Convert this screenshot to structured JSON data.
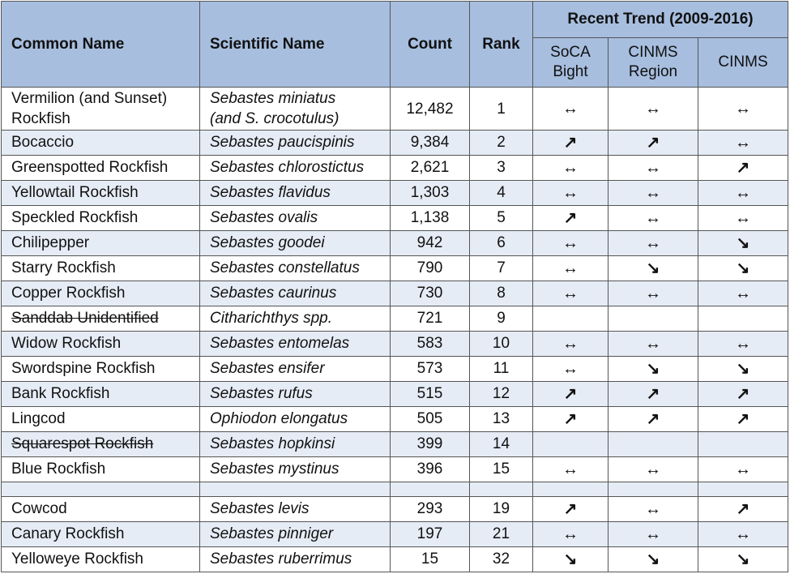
{
  "headers": {
    "common": "Common Name",
    "scientific": "Scientific Name",
    "count": "Count",
    "rank": "Rank",
    "trend_group": "Recent Trend (2009-2016)",
    "trend_cols": [
      "SoCA Bight",
      "CINMS Region",
      "CINMS"
    ]
  },
  "rows": [
    {
      "common": "Vermilion (and Sunset) Rockfish",
      "sci": "Sebastes miniatus",
      "sci2": "(and S. crocotulus)",
      "count": "12,482",
      "rank": "1",
      "t1": "↔",
      "t2": "↔",
      "t3": "↔"
    },
    {
      "common": "Bocaccio",
      "sci": "Sebastes paucispinis",
      "count": "9,384",
      "rank": "2",
      "t1": "↗",
      "t2": "↗",
      "t3": "↔"
    },
    {
      "common": "Greenspotted Rockfish",
      "sci": "Sebastes chlorostictus",
      "count": "2,621",
      "rank": "3",
      "t1": "↔",
      "t2": "↔",
      "t3": "↗"
    },
    {
      "common": "Yellowtail Rockfish",
      "sci": "Sebastes flavidus",
      "count": "1,303",
      "rank": "4",
      "t1": "↔",
      "t2": "↔",
      "t3": "↔"
    },
    {
      "common": "Speckled Rockfish",
      "sci": "Sebastes ovalis",
      "count": "1,138",
      "rank": "5",
      "t1": "↗",
      "t2": "↔",
      "t3": "↔"
    },
    {
      "common": "Chilipepper",
      "sci": "Sebastes goodei",
      "count": "942",
      "rank": "6",
      "t1": "↔",
      "t2": "↔",
      "t3": "↘"
    },
    {
      "common": "Starry Rockfish",
      "sci": "Sebastes constellatus",
      "count": "790",
      "rank": "7",
      "t1": "↔",
      "t2": "↘",
      "t3": "↘"
    },
    {
      "common": "Copper Rockfish",
      "sci": "Sebastes caurinus",
      "count": "730",
      "rank": "8",
      "t1": "↔",
      "t2": "↔",
      "t3": "↔"
    },
    {
      "common": "Sanddab Unidentified",
      "struck": true,
      "sci": "Citharichthys spp.",
      "count": "721",
      "rank": "9",
      "t1": "",
      "t2": "",
      "t3": ""
    },
    {
      "common": "Widow Rockfish",
      "sci": "Sebastes entomelas",
      "count": "583",
      "rank": "10",
      "t1": "↔",
      "t2": "↔",
      "t3": "↔"
    },
    {
      "common": "Swordspine Rockfish",
      "sci": "Sebastes ensifer",
      "count": "573",
      "rank": "11",
      "t1": "↔",
      "t2": "↘",
      "t3": "↘"
    },
    {
      "common": "Bank Rockfish",
      "sci": "Sebastes rufus",
      "count": "515",
      "rank": "12",
      "t1": "↗",
      "t2": "↗",
      "t3": "↗"
    },
    {
      "common": "Lingcod",
      "sci": "Ophiodon elongatus",
      "count": "505",
      "rank": "13",
      "t1": "↗",
      "t2": "↗",
      "t3": "↗"
    },
    {
      "common": "Squarespot Rockfish",
      "struck": true,
      "sci": "Sebastes hopkinsi",
      "count": "399",
      "rank": "14",
      "t1": "",
      "t2": "",
      "t3": ""
    },
    {
      "common": "Blue Rockfish",
      "sci": "Sebastes mystinus",
      "count": "396",
      "rank": "15",
      "t1": "↔",
      "t2": "↔",
      "t3": "↔"
    },
    {
      "common": "",
      "sci": "",
      "count": "",
      "rank": "",
      "t1": "",
      "t2": "",
      "t3": "",
      "empty": true
    },
    {
      "common": "Cowcod",
      "sci": "Sebastes levis",
      "count": "293",
      "rank": "19",
      "t1": "↗",
      "t2": "↔",
      "t3": "↗"
    },
    {
      "common": "Canary Rockfish",
      "sci": "Sebastes pinniger",
      "count": "197",
      "rank": "21",
      "t1": "↔",
      "t2": "↔",
      "t3": "↔"
    },
    {
      "common": "Yelloweye Rockfish",
      "sci": "Sebastes ruberrimus",
      "count": "15",
      "rank": "32",
      "t1": "↘",
      "t2": "↘",
      "t3": "↘"
    }
  ]
}
